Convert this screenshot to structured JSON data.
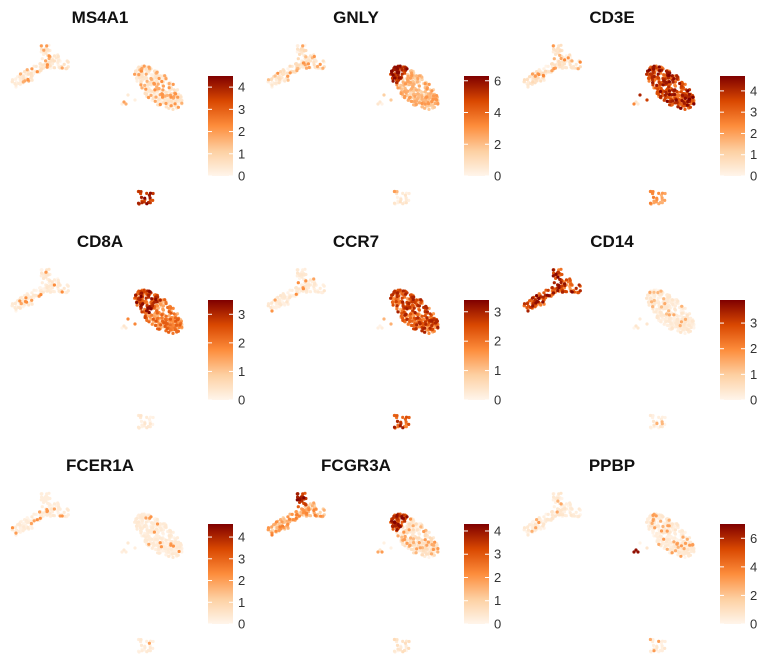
{
  "colors": {
    "scale_low": "#fff5eb",
    "scale_mid1": "#fdd0a2",
    "scale_mid2": "#fd8d3c",
    "scale_mid3": "#d94801",
    "scale_high": "#7f0000",
    "tick": "#333333"
  },
  "chart_data": [
    {
      "type": "scatter",
      "title": "MS4A1",
      "legend": {
        "ticks": [
          "4",
          "3",
          "2",
          "1",
          "0"
        ],
        "max": 4.5,
        "placement": "right"
      },
      "high_region": "bottom-small"
    },
    {
      "type": "scatter",
      "title": "GNLY",
      "legend": {
        "ticks": [
          "6",
          "4",
          "2",
          "0"
        ],
        "max": 6.3,
        "placement": "right"
      },
      "high_region": "right-top"
    },
    {
      "type": "scatter",
      "title": "CD3E",
      "legend": {
        "ticks": [
          "4",
          "3",
          "2",
          "1",
          "0"
        ],
        "max": 4.7,
        "placement": "right"
      },
      "high_region": "right-all"
    },
    {
      "type": "scatter",
      "title": "CD8A",
      "legend": {
        "ticks": [
          "3",
          "2",
          "1",
          "0"
        ],
        "max": 3.5,
        "placement": "right"
      },
      "high_region": "right-upper"
    },
    {
      "type": "scatter",
      "title": "CCR7",
      "legend": {
        "ticks": [
          "3",
          "2",
          "1",
          "0"
        ],
        "max": 3.4,
        "placement": "right"
      },
      "high_region": "right-lower"
    },
    {
      "type": "scatter",
      "title": "CD14",
      "legend": {
        "ticks": [
          "3",
          "2",
          "1",
          "0"
        ],
        "max": 3.9,
        "placement": "right"
      },
      "high_region": "left-all"
    },
    {
      "type": "scatter",
      "title": "FCER1A",
      "legend": {
        "ticks": [
          "4",
          "3",
          "2",
          "1",
          "0"
        ],
        "max": 4.6,
        "placement": "right"
      },
      "high_region": "left-tip"
    },
    {
      "type": "scatter",
      "title": "FCGR3A",
      "legend": {
        "ticks": [
          "4",
          "3",
          "2",
          "1",
          "0"
        ],
        "max": 4.3,
        "placement": "right"
      },
      "high_region": "left-top-and-right-top"
    },
    {
      "type": "scatter",
      "title": "PPBP",
      "legend": {
        "ticks": [
          "6",
          "4",
          "2",
          "0"
        ],
        "max": 7.0,
        "placement": "right"
      },
      "high_region": "tiny-cluster"
    }
  ]
}
